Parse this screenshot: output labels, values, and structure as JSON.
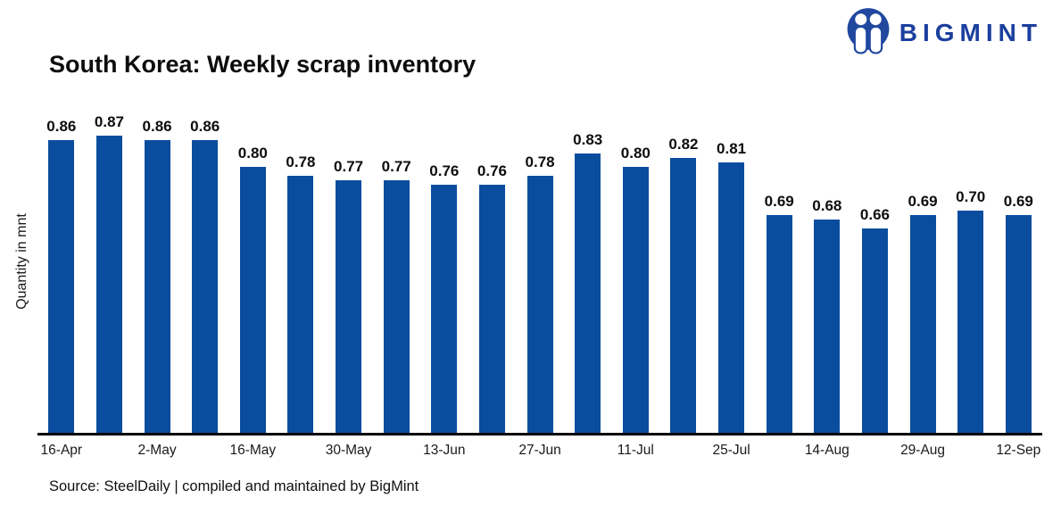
{
  "brand": {
    "name": "BIGMINT",
    "logo_color": "#20489f",
    "wordmark_color": "#1b3f9e"
  },
  "header": {
    "title": "South Korea: Weekly scrap inventory"
  },
  "chart_data": {
    "type": "bar",
    "title": "South Korea: Weekly scrap inventory",
    "xlabel": "",
    "ylabel": "Quantity in mnt",
    "bar_color": "#0a4d9e",
    "values": [
      0.86,
      0.87,
      0.86,
      0.86,
      0.8,
      0.78,
      0.77,
      0.77,
      0.76,
      0.76,
      0.78,
      0.83,
      0.8,
      0.82,
      0.81,
      0.69,
      0.68,
      0.66,
      0.69,
      0.7,
      0.69
    ],
    "data_labels": [
      "0.86",
      "0.87",
      "0.86",
      "0.86",
      "0.80",
      "0.78",
      "0.77",
      "0.77",
      "0.76",
      "0.76",
      "0.78",
      "0.83",
      "0.80",
      "0.82",
      "0.81",
      "0.69",
      "0.68",
      "0.66",
      "0.69",
      "0.70",
      "0.69"
    ],
    "x_tick_labels": [
      "16-Apr",
      "2-May",
      "16-May",
      "30-May",
      "13-Jun",
      "27-Jun",
      "11-Jul",
      "25-Jul",
      "14-Aug",
      "29-Aug",
      "12-Sep"
    ],
    "x_tick_every": 2,
    "ylim": [
      0.2,
      0.9
    ],
    "grid": false,
    "legend": null,
    "data_labels_shown": true
  },
  "footer": {
    "source": "Source: SteelDaily | compiled and maintained by BigMint"
  }
}
